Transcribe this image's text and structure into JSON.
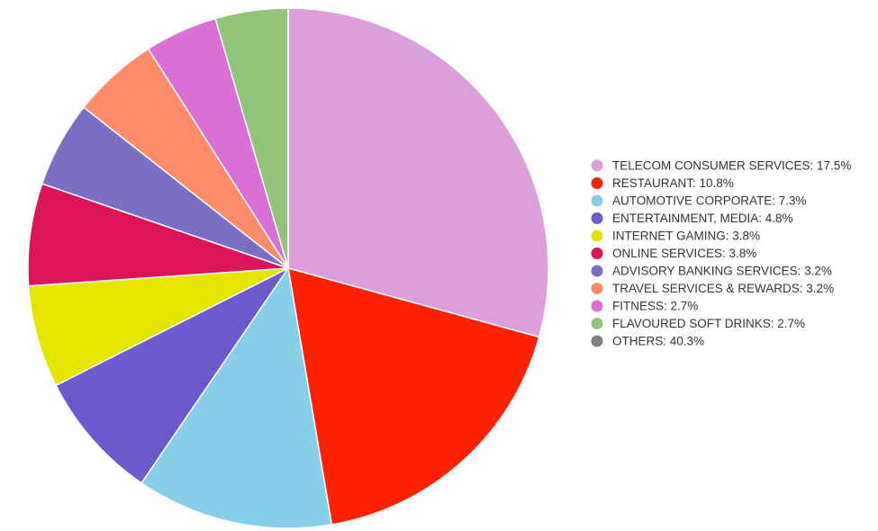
{
  "chart_data": {
    "type": "pie",
    "categories": [
      "TELECOM CONSUMER SERVICES: 17.5%",
      "RESTAURANT: 10.8%",
      "AUTOMOTIVE CORPORATE: 7.3%",
      "ENTERTAINMENT, MEDIA: 4.8%",
      "INTERNET GAMING: 3.8%",
      "ONLINE SERVICES: 3.8%",
      "ADVISORY BANKING SERVICES: 3.2%",
      "TRAVEL SERVICES & REWARDS: 3.2%",
      "FITNESS: 2.7%",
      "FLAVOURED SOFT DRINKS: 2.7%",
      "OTHERS: 40.3%"
    ],
    "values": [
      17.5,
      10.8,
      7.3,
      4.8,
      3.8,
      3.8,
      3.2,
      3.2,
      2.7,
      2.7,
      40.3
    ],
    "colors": [
      "#dc9fdc",
      "#ff2200",
      "#87ceeb",
      "#6a5acd",
      "#e5e500",
      "#dc145a",
      "#7b6fc4",
      "#ff8c69",
      "#da70d6",
      "#92c47a",
      "#808080"
    ],
    "show_slice": [
      true,
      true,
      true,
      true,
      true,
      true,
      true,
      true,
      true,
      true,
      false
    ],
    "legend": "right"
  }
}
